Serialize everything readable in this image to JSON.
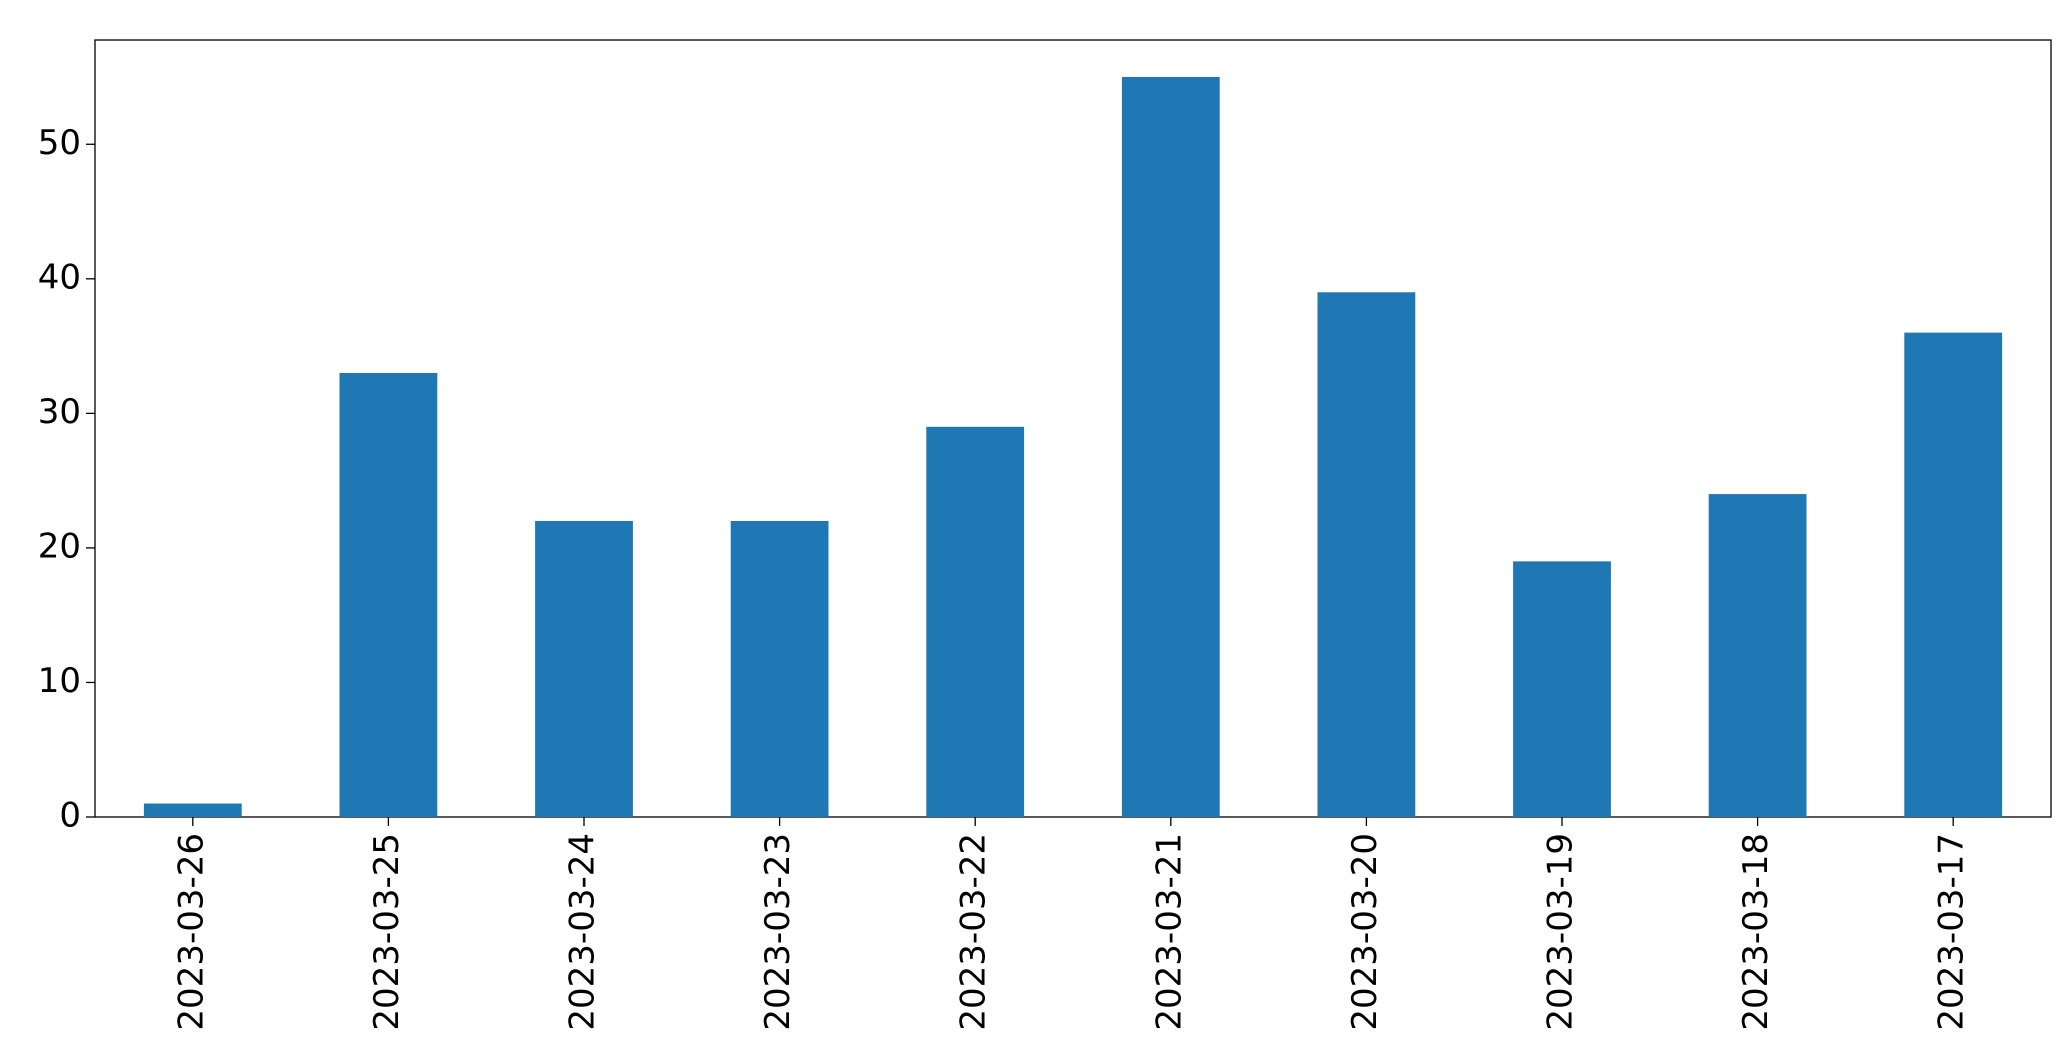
{
  "chart_data": {
    "type": "bar",
    "categories": [
      "2023-03-26",
      "2023-03-25",
      "2023-03-24",
      "2023-03-23",
      "2023-03-22",
      "2023-03-21",
      "2023-03-20",
      "2023-03-19",
      "2023-03-18",
      "2023-03-17"
    ],
    "values": [
      1,
      33,
      22,
      22,
      29,
      55,
      39,
      19,
      24,
      36
    ],
    "color": "#1f77b4",
    "ylim": [
      0,
      57.75
    ],
    "yticks": [
      0,
      10,
      20,
      30,
      40,
      50
    ],
    "grid": false
  }
}
